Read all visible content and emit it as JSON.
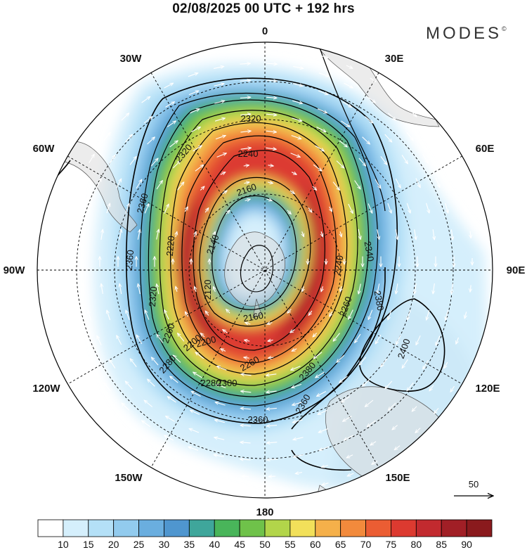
{
  "title": "02/08/2025  00 UTC  + 192 hrs",
  "brand": {
    "name": "MODES",
    "mark": "©"
  },
  "map": {
    "projection": "south-polar-stereographic",
    "longitude_labels": [
      {
        "text": "0",
        "lon": 0
      },
      {
        "text": "30E",
        "lon": 30
      },
      {
        "text": "60E",
        "lon": 60
      },
      {
        "text": "90E",
        "lon": 90
      },
      {
        "text": "120E",
        "lon": 120
      },
      {
        "text": "150E",
        "lon": 150
      },
      {
        "text": "180",
        "lon": 180
      },
      {
        "text": "150W",
        "lon": -150
      },
      {
        "text": "120W",
        "lon": -120
      },
      {
        "text": "90W",
        "lon": -90
      },
      {
        "text": "60W",
        "lon": -60
      },
      {
        "text": "30W",
        "lon": -30
      }
    ],
    "contour_labels": [
      "2320",
      "2240",
      "2160",
      "2140",
      "2120",
      "2220",
      "2320",
      "2360",
      "2360",
      "2320",
      "2260",
      "2200",
      "2280",
      "2300",
      "2260",
      "2160",
      "2200",
      "2280",
      "2360",
      "2340",
      "2380",
      "2400",
      "2380",
      "2360",
      "2260",
      "2240"
    ],
    "contour_unit_note": "",
    "vector_reference": {
      "label": "50"
    }
  },
  "colorbar": {
    "labels": [
      "10",
      "15",
      "20",
      "25",
      "30",
      "35",
      "40",
      "45",
      "50",
      "55",
      "60",
      "65",
      "70",
      "75",
      "80",
      "85",
      "90"
    ],
    "colors": [
      "#ffffff",
      "#d5effc",
      "#b4e0f7",
      "#92cbee",
      "#6aaedf",
      "#4f96cf",
      "#3fa69b",
      "#49b55a",
      "#6fc24a",
      "#b2d54a",
      "#f2e05a",
      "#f5b04a",
      "#f28a3c",
      "#eb5d33",
      "#dc3a30",
      "#c22a2f",
      "#a11f26",
      "#8a1a1d"
    ]
  }
}
